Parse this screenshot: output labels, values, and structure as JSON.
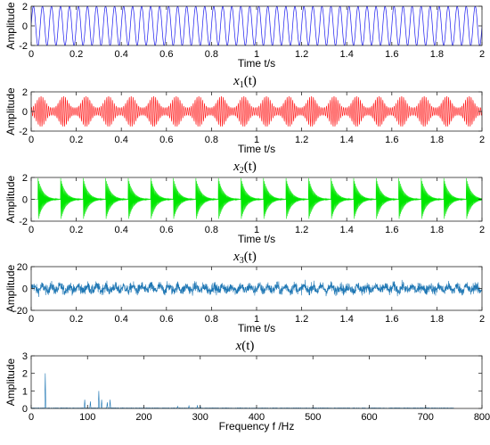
{
  "chart_data": [
    {
      "type": "line",
      "panel": 1,
      "series": [
        {
          "color": "#1a1af0",
          "signal": "sinusoid",
          "amplitude": 2,
          "frequency_hz": 25
        }
      ],
      "xlim": [
        0,
        2
      ],
      "ylim": [
        -2,
        2
      ],
      "xticks": [
        "0",
        "0.2",
        "0.4",
        "0.6",
        "0.8",
        "1",
        "1.2",
        "1.4",
        "1.6",
        "1.8",
        "2"
      ],
      "yticks": [
        "2",
        "0",
        "-2"
      ],
      "xlabel": "Time t/s",
      "ylabel": "Amplitude",
      "caption": {
        "var": "x",
        "sub": "1",
        "arg": "(t)"
      }
    },
    {
      "type": "line",
      "panel": 2,
      "series": [
        {
          "color": "#ff1a1a",
          "signal": "amplitude-modulated oscillation",
          "peak_amplitude": 1.6,
          "carrier_hz": 120,
          "modulation_hz": 20
        }
      ],
      "xlim": [
        0,
        2
      ],
      "ylim": [
        -2,
        2
      ],
      "xticks": [
        "0",
        "0.2",
        "0.4",
        "0.6",
        "0.8",
        "1",
        "1.2",
        "1.4",
        "1.6",
        "1.8",
        "2"
      ],
      "yticks": [
        "2",
        "0",
        "-2"
      ],
      "xlabel": "Time t/s",
      "ylabel": "Amplitude",
      "caption": {
        "var": "x",
        "sub": "2",
        "arg": "(t)"
      }
    },
    {
      "type": "line",
      "panel": 3,
      "series": [
        {
          "color": "#00e600",
          "signal": "periodic decaying impulses",
          "impulse_period_s": 0.1,
          "peak_amplitude": 2,
          "ring_hz": 300
        }
      ],
      "xlim": [
        0,
        2
      ],
      "ylim": [
        -2,
        2
      ],
      "xticks": [
        "0",
        "0.2",
        "0.4",
        "0.6",
        "0.8",
        "1",
        "1.2",
        "1.4",
        "1.6",
        "1.8",
        "2"
      ],
      "yticks": [
        "2",
        "0",
        "-2"
      ],
      "xlabel": "Time t/s",
      "ylabel": "Amplitude",
      "caption": {
        "var": "x",
        "sub": "3",
        "arg": "(t)"
      }
    },
    {
      "type": "line",
      "panel": 4,
      "series": [
        {
          "color": "#1f77b4",
          "signal": "noisy composite",
          "typical_range": [
            -10,
            10
          ]
        }
      ],
      "xlim": [
        0,
        2
      ],
      "ylim": [
        -20,
        20
      ],
      "xticks": [
        "0",
        "0.2",
        "0.4",
        "0.6",
        "0.8",
        "1",
        "1.2",
        "1.4",
        "1.6",
        "1.8",
        "2"
      ],
      "yticks": [
        "20",
        "0",
        "-20"
      ],
      "xlabel": "Time t/s",
      "ylabel": "Amplitude",
      "caption": {
        "var": "x",
        "sub": "",
        "arg": "(t)"
      }
    },
    {
      "type": "line",
      "panel": 5,
      "series": [
        {
          "color": "#1f77b4",
          "peaks": [
            {
              "x": 25,
              "y": 2.0
            },
            {
              "x": 95,
              "y": 0.5
            },
            {
              "x": 105,
              "y": 0.4
            },
            {
              "x": 120,
              "y": 1.0
            },
            {
              "x": 125,
              "y": 0.5
            },
            {
              "x": 135,
              "y": 0.35
            },
            {
              "x": 140,
              "y": 0.5
            },
            {
              "x": 200,
              "y": 0.08
            },
            {
              "x": 260,
              "y": 0.12
            },
            {
              "x": 280,
              "y": 0.15
            },
            {
              "x": 295,
              "y": 0.18
            },
            {
              "x": 300,
              "y": 0.15
            },
            {
              "x": 400,
              "y": 0.06
            },
            {
              "x": 500,
              "y": 0.06
            },
            {
              "x": 600,
              "y": 0.08
            },
            {
              "x": 700,
              "y": 0.1
            }
          ],
          "noise_floor": 0.03,
          "x_end": 750
        }
      ],
      "xlim": [
        0,
        800
      ],
      "ylim": [
        0,
        3
      ],
      "xticks": [
        "0",
        "100",
        "200",
        "300",
        "400",
        "500",
        "600",
        "700",
        "800"
      ],
      "yticks": [
        "3",
        "2",
        "1",
        "0"
      ],
      "xlabel": "Frequency f /Hz",
      "ylabel": "Amplitude"
    }
  ]
}
